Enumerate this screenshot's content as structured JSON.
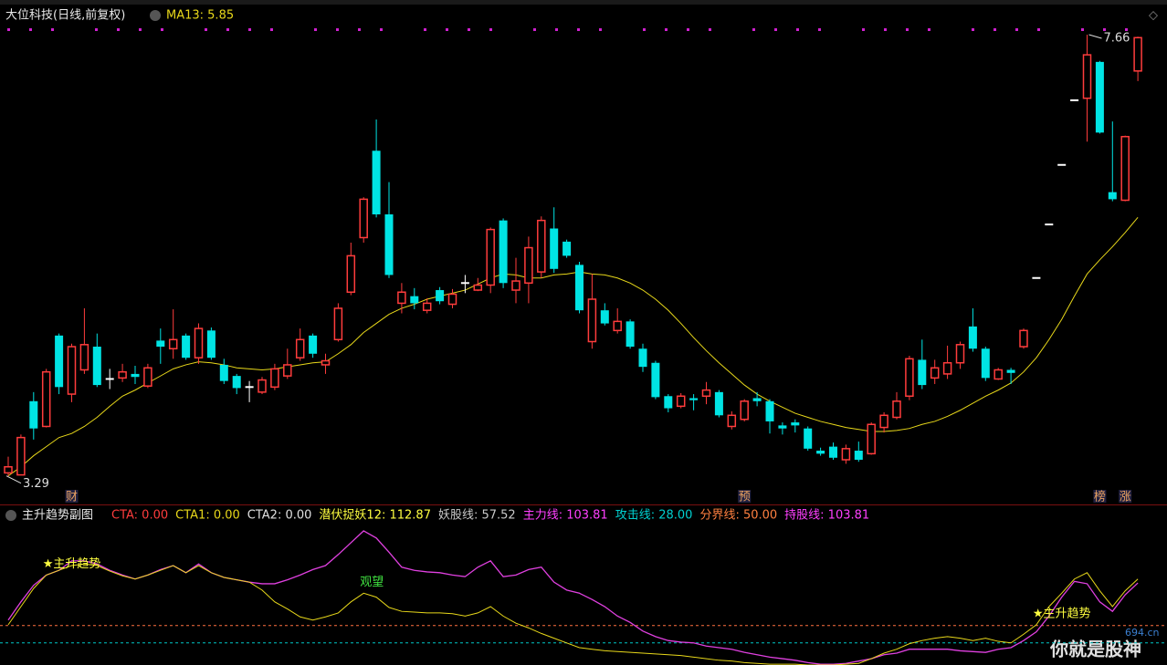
{
  "chart_data": [
    {
      "type": "candlestick",
      "title": "大位科技(日线,前复权)",
      "ma": {
        "label": "MA13: 5.85",
        "color": "#e8d81a",
        "values": [
          3.29,
          3.38,
          3.49,
          3.58,
          3.67,
          3.71,
          3.78,
          3.87,
          3.98,
          4.08,
          4.14,
          4.21,
          4.28,
          4.35,
          4.39,
          4.42,
          4.41,
          4.39,
          4.36,
          4.35,
          4.34,
          4.35,
          4.37,
          4.39,
          4.41,
          4.42,
          4.5,
          4.59,
          4.71,
          4.8,
          4.89,
          4.95,
          4.99,
          5.04,
          5.07,
          5.1,
          5.13,
          5.19,
          5.25,
          5.29,
          5.28,
          5.25,
          5.25,
          5.28,
          5.29,
          5.31,
          5.29,
          5.28,
          5.25,
          5.2,
          5.13,
          5.04,
          4.93,
          4.8,
          4.66,
          4.53,
          4.41,
          4.3,
          4.19,
          4.1,
          4.03,
          3.97,
          3.91,
          3.87,
          3.83,
          3.8,
          3.77,
          3.75,
          3.73,
          3.73,
          3.74,
          3.76,
          3.8,
          3.83,
          3.88,
          3.94,
          4.01,
          4.08,
          4.14,
          4.21,
          4.32,
          4.46,
          4.64,
          4.84,
          5.07,
          5.29,
          5.43,
          5.56,
          5.7,
          5.85
        ]
      },
      "open": [
        3.32,
        3.3,
        4.03,
        3.78,
        4.68,
        4.1,
        4.34,
        4.57,
        4.25,
        4.26,
        4.3,
        4.18,
        4.63,
        4.55,
        4.68,
        4.46,
        4.73,
        4.39,
        4.28,
        4.17,
        4.12,
        4.17,
        4.28,
        4.46,
        4.68,
        4.39,
        4.64,
        5.11,
        5.65,
        6.51,
        5.88,
        5.0,
        5.07,
        4.93,
        5.13,
        4.99,
        5.2,
        5.13,
        5.18,
        5.82,
        5.13,
        5.2,
        5.31,
        5.74,
        5.61,
        5.38,
        4.62,
        4.93,
        4.73,
        4.82,
        4.55,
        4.41,
        4.08,
        3.98,
        4.06,
        4.08,
        4.12,
        3.78,
        3.85,
        4.06,
        4.03,
        3.79,
        3.82,
        3.76,
        3.54,
        3.58,
        3.45,
        3.54,
        3.51,
        3.77,
        3.87,
        4.08,
        4.44,
        4.26,
        4.3,
        4.41,
        4.77,
        4.55,
        4.25,
        4.34,
        4.57,
        5.25,
        5.78,
        6.37,
        7.01,
        7.03,
        7.39,
        6.1,
        6.02,
        7.3
      ],
      "high": [
        3.48,
        3.7,
        4.12,
        4.35,
        4.7,
        4.6,
        4.95,
        4.7,
        4.35,
        4.4,
        4.38,
        4.4,
        4.75,
        4.94,
        4.7,
        4.8,
        4.76,
        4.45,
        4.3,
        4.23,
        4.27,
        4.4,
        4.55,
        4.75,
        4.7,
        4.5,
        5.0,
        5.6,
        6.05,
        6.82,
        6.2,
        5.2,
        5.15,
        5.05,
        5.16,
        5.14,
        5.28,
        5.25,
        5.75,
        5.84,
        5.45,
        5.66,
        5.86,
        5.95,
        5.63,
        5.41,
        5.29,
        5.0,
        4.95,
        4.84,
        4.6,
        4.43,
        4.1,
        4.11,
        4.1,
        4.22,
        4.14,
        3.93,
        4.05,
        4.12,
        4.05,
        3.82,
        3.85,
        3.78,
        3.57,
        3.62,
        3.6,
        3.63,
        3.82,
        3.92,
        4.12,
        4.48,
        4.64,
        4.44,
        4.58,
        4.62,
        4.95,
        4.57,
        4.36,
        4.36,
        4.75,
        5.25,
        5.78,
        6.37,
        7.01,
        7.66,
        7.4,
        6.8,
        6.66,
        7.64
      ],
      "low": [
        3.29,
        3.3,
        3.65,
        3.77,
        4.1,
        4.02,
        4.3,
        4.17,
        4.15,
        4.22,
        4.2,
        4.16,
        4.4,
        4.45,
        4.44,
        4.4,
        4.44,
        4.2,
        4.1,
        4.02,
        4.1,
        4.14,
        4.25,
        4.43,
        4.46,
        4.3,
        4.62,
        5.08,
        5.6,
        5.85,
        5.25,
        4.9,
        4.94,
        4.9,
        4.99,
        4.95,
        5.1,
        5.12,
        5.1,
        5.15,
        5.0,
        5.0,
        5.25,
        5.3,
        5.45,
        4.9,
        4.55,
        4.78,
        4.7,
        4.55,
        4.32,
        4.05,
        3.92,
        3.96,
        3.94,
        4.0,
        3.87,
        3.75,
        3.83,
        3.98,
        3.71,
        3.7,
        3.72,
        3.54,
        3.49,
        3.45,
        3.41,
        3.43,
        3.5,
        3.72,
        3.85,
        4.04,
        4.15,
        4.2,
        4.25,
        4.35,
        4.52,
        4.23,
        4.24,
        4.2,
        4.55,
        5.25,
        5.78,
        6.37,
        7.01,
        6.6,
        6.68,
        6.01,
        6.01,
        7.2
      ],
      "close": [
        3.38,
        3.67,
        3.76,
        4.32,
        4.17,
        4.57,
        4.59,
        4.19,
        4.25,
        4.32,
        4.27,
        4.36,
        4.57,
        4.64,
        4.46,
        4.75,
        4.46,
        4.23,
        4.16,
        4.17,
        4.24,
        4.35,
        4.39,
        4.64,
        4.5,
        4.43,
        4.95,
        5.47,
        6.03,
        5.88,
        5.28,
        5.11,
        5.0,
        5.0,
        5.02,
        5.09,
        5.2,
        5.18,
        5.73,
        5.2,
        5.22,
        5.55,
        5.82,
        5.34,
        5.47,
        4.93,
        5.04,
        4.8,
        4.82,
        4.57,
        4.37,
        4.07,
        3.96,
        4.08,
        4.04,
        4.14,
        3.89,
        3.89,
        4.03,
        4.03,
        3.83,
        3.76,
        3.79,
        3.56,
        3.51,
        3.47,
        3.56,
        3.45,
        3.8,
        3.89,
        4.03,
        4.45,
        4.19,
        4.36,
        4.41,
        4.59,
        4.55,
        4.26,
        4.34,
        4.31,
        4.73,
        5.25,
        5.78,
        6.37,
        7.01,
        7.46,
        6.69,
        6.03,
        6.65,
        7.63
      ],
      "colors": {
        "up": "#ff3c3c",
        "down": "#00e4e4",
        "flat": "#ffffff"
      },
      "max_label": "7.66",
      "min_label": "3.29",
      "events": [
        null,
        null,
        null,
        null,
        null,
        "财",
        null,
        null,
        null,
        null,
        null,
        null,
        null,
        null,
        null,
        null,
        null,
        null,
        null,
        null,
        null,
        null,
        null,
        null,
        null,
        null,
        null,
        null,
        null,
        null,
        null,
        null,
        null,
        null,
        null,
        null,
        null,
        null,
        null,
        null,
        null,
        null,
        null,
        null,
        null,
        null,
        null,
        null,
        null,
        null,
        null,
        null,
        null,
        null,
        null,
        null,
        null,
        null,
        "预",
        null,
        null,
        null,
        null,
        null,
        null,
        null,
        null,
        null,
        null,
        null,
        null,
        null,
        null,
        null,
        null,
        null,
        null,
        null,
        null,
        null,
        null,
        null,
        null,
        null,
        null,
        null,
        "榜",
        null,
        "涨",
        null
      ],
      "ylim": [
        3.17,
        7.75
      ]
    },
    {
      "type": "line",
      "title": "主升趋势副图",
      "legend": [
        {
          "label": "CTA: 0.00",
          "color": "#ff3c3c"
        },
        {
          "label": "CTA1: 0.00",
          "color": "#e8d81a"
        },
        {
          "label": "CTA2: 0.00",
          "color": "#e0e0e0"
        },
        {
          "label": "潜伏捉妖12: 112.87",
          "color": "#ffff40"
        },
        {
          "label": "妖股线: 57.52",
          "color": "#c8c8c8"
        },
        {
          "label": "主力线: 103.81",
          "color": "#ff40ff"
        },
        {
          "label": "攻击线: 28.00",
          "color": "#00d0d0"
        },
        {
          "label": "分界线: 50.00",
          "color": "#ff8040"
        },
        {
          "label": "持股线: 103.81",
          "color": "#ff40ff"
        }
      ],
      "series": [
        {
          "color": "#e040e0",
          "values": [
            57,
            80,
            101,
            114,
            120,
            132,
            132,
            128,
            120,
            114,
            109,
            114,
            121,
            126,
            117,
            128,
            117,
            111,
            108,
            105,
            103,
            103,
            108,
            114,
            121,
            126,
            140,
            155,
            170,
            161,
            143,
            124,
            120,
            118,
            117,
            114,
            112,
            124,
            132,
            112,
            114,
            121,
            124,
            105,
            95,
            91,
            83,
            74,
            62,
            54,
            43,
            36,
            31,
            29,
            28,
            24,
            22,
            20,
            16,
            13,
            10,
            8,
            6,
            3,
            1,
            1,
            2,
            5,
            8,
            13,
            15,
            20,
            20,
            20,
            20,
            18,
            17,
            16,
            20,
            22,
            31,
            42,
            62,
            86,
            106,
            103,
            80,
            68,
            89,
            104
          ]
        },
        {
          "color": "#e8d81a",
          "values": [
            51,
            74,
            97,
            114,
            120,
            126,
            128,
            126,
            119,
            113,
            109,
            114,
            120,
            126,
            117,
            126,
            117,
            111,
            108,
            105,
            95,
            80,
            71,
            61,
            57,
            61,
            66,
            80,
            91,
            86,
            73,
            68,
            67,
            66,
            66,
            65,
            62,
            66,
            74,
            62,
            53,
            47,
            40,
            34,
            28,
            22,
            20,
            18,
            17,
            16,
            15,
            14,
            13,
            12,
            10,
            8,
            6,
            5,
            3,
            2,
            1,
            1,
            1,
            0,
            0,
            0,
            1,
            2,
            8,
            15,
            20,
            27,
            31,
            34,
            36,
            34,
            31,
            34,
            30,
            28,
            39,
            51,
            74,
            91,
            109,
            117,
            94,
            74,
            94,
            109
          ]
        }
      ],
      "reference_lines": [
        {
          "value": 50,
          "color": "#ff7040"
        },
        {
          "value": 28,
          "color": "#00c8c8"
        }
      ],
      "signals": [
        null,
        null,
        null,
        "★主升趋势",
        null,
        null,
        null,
        null,
        null,
        null,
        null,
        null,
        null,
        null,
        null,
        null,
        null,
        null,
        null,
        null,
        null,
        null,
        null,
        null,
        null,
        null,
        null,
        null,
        "观望",
        null,
        null,
        null,
        null,
        null,
        null,
        null,
        null,
        null,
        null,
        null,
        null,
        null,
        null,
        null,
        null,
        null,
        null,
        null,
        null,
        null,
        null,
        null,
        null,
        null,
        null,
        null,
        null,
        null,
        null,
        null,
        null,
        null,
        null,
        null,
        null,
        null,
        null,
        null,
        null,
        null,
        null,
        null,
        null,
        null,
        null,
        null,
        null,
        null,
        null,
        null,
        null,
        "★主升趋势",
        null,
        null,
        null,
        null,
        null,
        null,
        null,
        null
      ],
      "ylim": [
        0,
        185
      ]
    }
  ],
  "watermark": {
    "text": "你就是股神",
    "site": "694.cn"
  }
}
